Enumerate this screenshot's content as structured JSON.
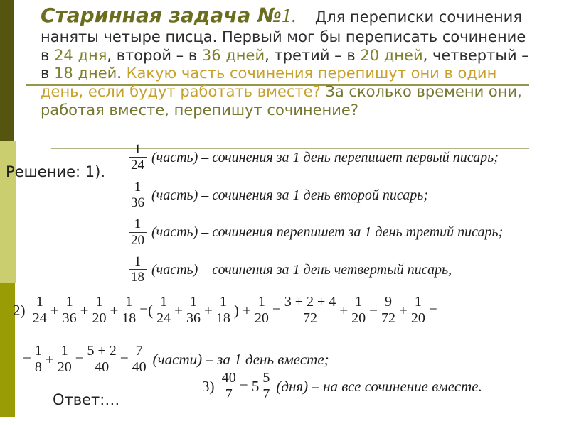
{
  "colors": {
    "title_olive": "#6b6e1f",
    "highlight_olive": "#80802c",
    "question_gold": "#c8a02c",
    "question_olive": "#75782f",
    "bar_dark": "#55550f",
    "bar_light": "#cbce6e",
    "bar_mid": "#9a9c05"
  },
  "slide": {
    "title": {
      "main": "Старинная задача №",
      "number": "1."
    },
    "intro": {
      "lead": "Для переписки сочинения наняты четыре писца. Первый мог бы переписать сочинение в ",
      "d1": "24 дня",
      "s1": ", второй – в ",
      "d2": "36 дней",
      "s2": ", третий – в ",
      "d3": "20 дней",
      "s3": ", четвертый – в ",
      "d4": "18 дней",
      "s4": ". ",
      "q1": "Какую часть сочинения перепишут они в один день, если будут работать вместе? ",
      "q2": "За сколько времени они, работая вместе,  перепишут сочинение?"
    },
    "solution_label": "Решение:  1).",
    "statements": [
      {
        "num": "1",
        "den": "24",
        "label": "(часть) – сочинения за 1 день перепишет первый писарь;"
      },
      {
        "num": "1",
        "den": "36",
        "label": "(часть) – сочинения за 1 день второй писарь;"
      },
      {
        "num": "1",
        "den": "20",
        "label": "(часть) – сочинения перепишет за 1 день третий писарь;"
      },
      {
        "num": "1",
        "den": "18",
        "label": "(часть) – сочинения за 1 день четвертый писарь,"
      }
    ],
    "eq2": [
      {
        "t": "txt",
        "v": "2) "
      },
      {
        "t": "frac",
        "n": "1",
        "d": "24"
      },
      {
        "t": "op",
        "v": "+"
      },
      {
        "t": "frac",
        "n": "1",
        "d": "36"
      },
      {
        "t": "op",
        "v": "+"
      },
      {
        "t": "frac",
        "n": "1",
        "d": "20"
      },
      {
        "t": "op",
        "v": "+"
      },
      {
        "t": "frac",
        "n": "1",
        "d": "18"
      },
      {
        "t": "op",
        "v": "=("
      },
      {
        "t": "frac",
        "n": "1",
        "d": "24"
      },
      {
        "t": "op",
        "v": "+"
      },
      {
        "t": "frac",
        "n": "1",
        "d": "36"
      },
      {
        "t": "op",
        "v": "+"
      },
      {
        "t": "frac",
        "n": "1",
        "d": "18"
      },
      {
        "t": "op",
        "v": ") +"
      },
      {
        "t": "frac",
        "n": "1",
        "d": "20"
      },
      {
        "t": "op",
        "v": "="
      },
      {
        "t": "frac",
        "n": "3 + 2 + 4",
        "d": "72"
      },
      {
        "t": "op",
        "v": "+"
      },
      {
        "t": "frac",
        "n": "1",
        "d": "20"
      },
      {
        "t": "op",
        "v": "−"
      },
      {
        "t": "frac",
        "n": "9",
        "d": "72"
      },
      {
        "t": "op",
        "v": "+"
      },
      {
        "t": "frac",
        "n": "1",
        "d": "20"
      },
      {
        "t": "op",
        "v": "="
      }
    ],
    "eq2b": [
      {
        "t": "op",
        "v": "="
      },
      {
        "t": "frac",
        "n": "1",
        "d": "8"
      },
      {
        "t": "op",
        "v": "+"
      },
      {
        "t": "frac",
        "n": "1",
        "d": "20"
      },
      {
        "t": "op",
        "v": "="
      },
      {
        "t": "frac",
        "n": "5 + 2",
        "d": "40"
      },
      {
        "t": "op",
        "v": "="
      },
      {
        "t": "frac",
        "n": "7",
        "d": "40"
      },
      {
        "t": "lbl",
        "v": "(части) – за 1 день вместе;"
      }
    ],
    "eq3": [
      {
        "t": "txt",
        "v": "3) "
      },
      {
        "t": "frac",
        "n": "40",
        "d": "7"
      },
      {
        "t": "op",
        "v": "= 5"
      },
      {
        "t": "frac",
        "n": "5",
        "d": "7"
      },
      {
        "t": "lbl",
        "v": "(дня) – на все сочинение вместе."
      }
    ],
    "answer": "Ответ:…"
  }
}
